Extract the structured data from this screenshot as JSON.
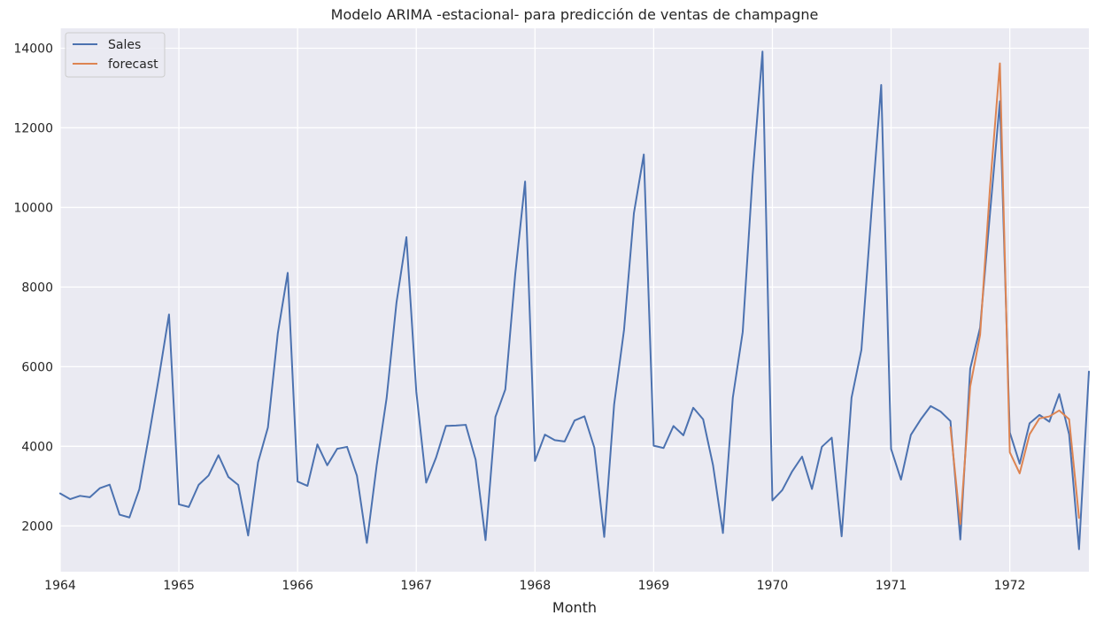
{
  "chart_data": {
    "type": "line",
    "title": "Modelo ARIMA -estacional- para predicción de ventas de champagne",
    "xlabel": "Month",
    "ylabel": "",
    "xlim": [
      "1964-01",
      "1972-09"
    ],
    "ylim": [
      850,
      14500
    ],
    "x_ticks": [
      "1964",
      "1965",
      "1966",
      "1967",
      "1968",
      "1969",
      "1970",
      "1971",
      "1972"
    ],
    "y_ticks": [
      2000,
      4000,
      6000,
      8000,
      10000,
      12000,
      14000
    ],
    "y_tick_labels": [
      "2000",
      "4000",
      "6000",
      "8000",
      "10000",
      "12000",
      "14000"
    ],
    "grid": true,
    "legend_position": "top-left",
    "series": [
      {
        "name": "Sales",
        "color": "#4c72b0",
        "start": "1964-01",
        "values": [
          2815,
          2672,
          2755,
          2721,
          2946,
          3036,
          2282,
          2212,
          2922,
          4301,
          5764,
          7312,
          2541,
          2475,
          3031,
          3266,
          3776,
          3230,
          3028,
          1759,
          3595,
          4474,
          6838,
          8357,
          3113,
          3006,
          4047,
          3523,
          3937,
          3986,
          3260,
          1573,
          3528,
          5211,
          7614,
          9254,
          5375,
          3088,
          3718,
          4514,
          4520,
          4539,
          3663,
          1643,
          4739,
          5428,
          8314,
          10651,
          3633,
          4292,
          4154,
          4121,
          4647,
          4753,
          3965,
          1723,
          5048,
          6922,
          9858,
          11331,
          4016,
          3957,
          4510,
          4276,
          4968,
          4677,
          3523,
          1821,
          5222,
          6872,
          10803,
          13916,
          2639,
          2899,
          3370,
          3740,
          2927,
          3986,
          4217,
          1738,
          5221,
          6424,
          9842,
          13076,
          3934,
          3162,
          4286,
          4676,
          5010,
          4874,
          4633,
          1659,
          5951,
          6981,
          9851,
          12670,
          4348,
          3564,
          4577,
          4788,
          4618,
          5312,
          4298,
          1413,
          5877
        ]
      },
      {
        "name": "forecast",
        "color": "#dd8452",
        "start": "1971-07",
        "values": [
          4480,
          2050,
          5500,
          6800,
          10500,
          13620,
          3850,
          3320,
          4300,
          4700,
          4750,
          4900,
          4680,
          2200
        ]
      }
    ]
  }
}
